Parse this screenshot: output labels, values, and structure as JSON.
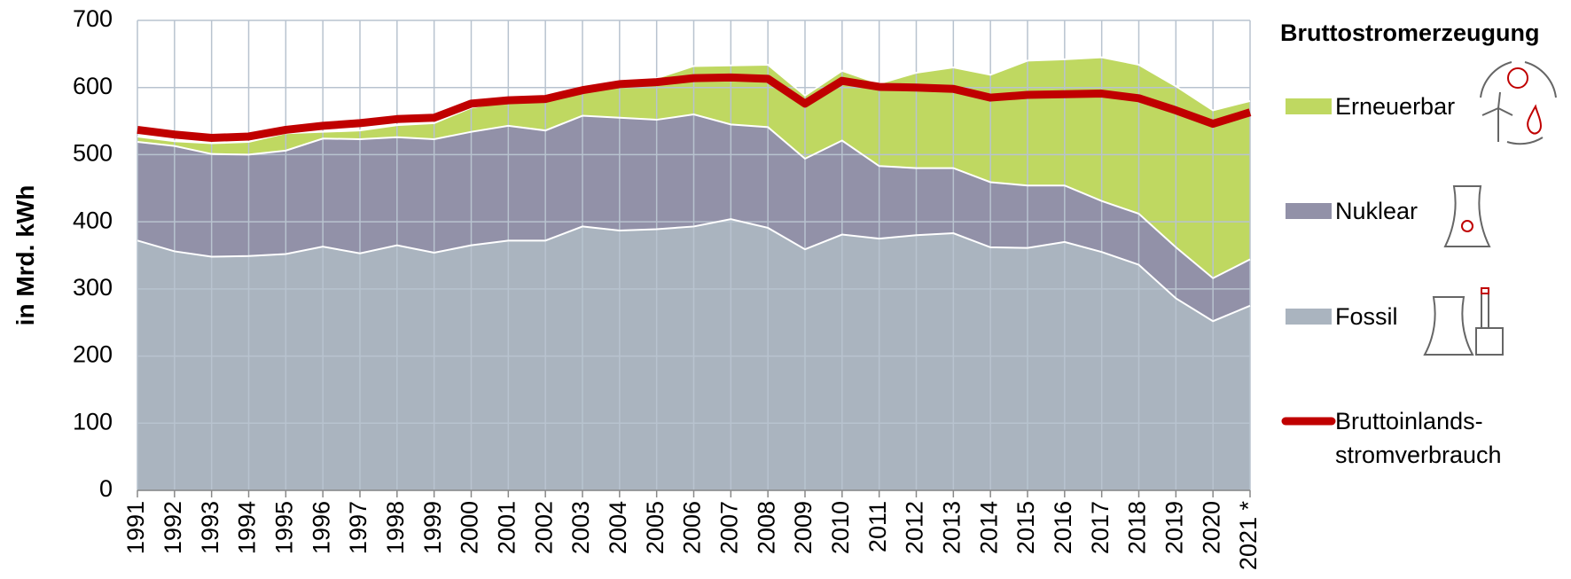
{
  "chart_data": {
    "type": "stacked-area",
    "y_label": "in Mrd. kWh",
    "legend_title": "Bruttostromerzeugung",
    "categories": [
      "1991",
      "1992",
      "1993",
      "1994",
      "1995",
      "1996",
      "1997",
      "1998",
      "1999",
      "2000",
      "2001",
      "2002",
      "2003",
      "2004",
      "2005",
      "2006",
      "2007",
      "2008",
      "2009",
      "2010",
      "2011",
      "2012",
      "2013",
      "2014",
      "2015",
      "2016",
      "2017",
      "2018",
      "2019",
      "2020",
      "2021 *"
    ],
    "series": [
      {
        "name": "Fossil",
        "type": "area",
        "color": "#aab4bf",
        "values": [
          372,
          356,
          348,
          349,
          352,
          363,
          353,
          365,
          354,
          365,
          372,
          372,
          393,
          387,
          389,
          393,
          404,
          391,
          359,
          381,
          375,
          380,
          383,
          362,
          361,
          370,
          355,
          336,
          286,
          252,
          275
        ]
      },
      {
        "name": "Nuklear",
        "type": "area",
        "color": "#9291a8",
        "values": [
          147,
          157,
          153,
          151,
          154,
          161,
          170,
          161,
          169,
          169,
          171,
          164,
          165,
          168,
          163,
          167,
          141,
          150,
          135,
          140,
          108,
          100,
          97,
          97,
          93,
          84,
          76,
          76,
          76,
          64,
          69
        ]
      },
      {
        "name": "Erneuerbar",
        "type": "area",
        "color": "#bfd861",
        "values": [
          8,
          7,
          16,
          19,
          26,
          10,
          13,
          18,
          24,
          36,
          37,
          46,
          42,
          55,
          62,
          72,
          88,
          93,
          94,
          104,
          123,
          142,
          150,
          160,
          186,
          188,
          214,
          222,
          240,
          250,
          236
        ]
      },
      {
        "name": "Bruttoinlands-\nstromverbrauch",
        "type": "line",
        "color": "#c00000",
        "values": [
          537,
          530,
          525,
          527,
          537,
          543,
          547,
          553,
          555,
          576,
          581,
          583,
          596,
          605,
          608,
          614,
          615,
          613,
          576,
          610,
          601,
          600,
          598,
          585,
          589,
          590,
          591,
          584,
          566,
          546,
          563
        ]
      }
    ],
    "ylim": [
      0,
      700
    ],
    "yticks": [
      0,
      100,
      200,
      300,
      400,
      500,
      600,
      700
    ],
    "grid": true
  }
}
